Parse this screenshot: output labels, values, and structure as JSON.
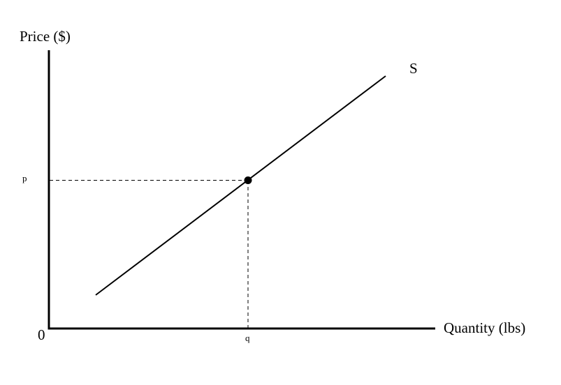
{
  "diagram": {
    "y_axis_label": "Price ($)",
    "x_axis_label": "Quantity (lbs)",
    "origin_label": "0",
    "supply_label": "S",
    "price_label": "p",
    "quantity_label": "q"
  }
}
